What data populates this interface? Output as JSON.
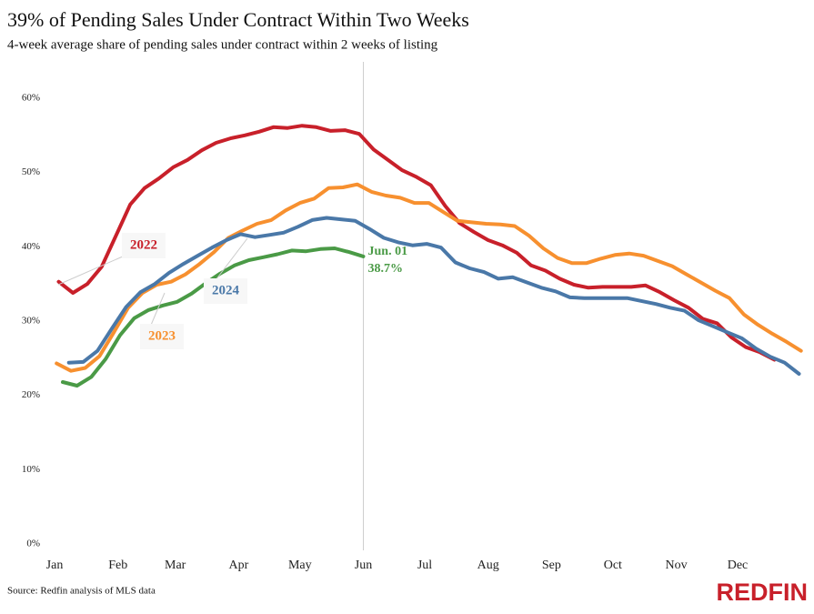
{
  "chart_data": {
    "type": "line",
    "title": "39% of Pending Sales Under Contract Within Two Weeks",
    "subtitle": "4-week average share of pending sales under contract within 2 weeks of listing",
    "source": "Source: Redfin analysis of MLS data",
    "brand": "REDFIN",
    "xlim": [
      1,
      366
    ],
    "ylim": [
      0,
      60
    ],
    "grid": false,
    "xticks": [
      {
        "value": 1,
        "label": "Jan"
      },
      {
        "value": 32,
        "label": "Feb"
      },
      {
        "value": 60,
        "label": "Mar"
      },
      {
        "value": 91,
        "label": "Apr"
      },
      {
        "value": 121,
        "label": "May"
      },
      {
        "value": 152,
        "label": "Jun"
      },
      {
        "value": 182,
        "label": "Jul"
      },
      {
        "value": 213,
        "label": "Aug"
      },
      {
        "value": 244,
        "label": "Sep"
      },
      {
        "value": 274,
        "label": "Oct"
      },
      {
        "value": 305,
        "label": "Nov"
      },
      {
        "value": 335,
        "label": "Dec"
      }
    ],
    "yticks": [
      {
        "value": 0,
        "label": "0%"
      },
      {
        "value": 10,
        "label": "10%"
      },
      {
        "value": 20,
        "label": "20%"
      },
      {
        "value": 30,
        "label": "30%"
      },
      {
        "value": 40,
        "label": "40%"
      },
      {
        "value": 50,
        "label": "50%"
      },
      {
        "value": 60,
        "label": "60%"
      }
    ],
    "series": [
      {
        "name": "2022",
        "color": "#c8202a",
        "x_start": 3,
        "x_step": 7,
        "values": [
          35.3,
          33.8,
          35,
          37.3,
          41.5,
          45.7,
          47.9,
          49.2,
          50.7,
          51.7,
          53,
          54,
          54.6,
          55,
          55.5,
          56.1,
          56,
          56.3,
          56.1,
          55.6,
          55.7,
          55.2,
          53.1,
          51.7,
          50.3,
          49.4,
          48.3,
          45.5,
          43.2,
          42,
          40.9,
          40.2,
          39.2,
          37.5,
          36.8,
          35.7,
          34.9,
          34.5,
          34.6,
          34.6,
          34.6,
          34.8,
          33.9,
          32.8,
          31.8,
          30.3,
          29.7,
          27.8,
          26.5,
          25.8,
          24.8
        ]
      },
      {
        "name": "2023",
        "color": "#f7902f",
        "x_start": 2,
        "x_step": 7,
        "values": [
          24.3,
          23.3,
          23.7,
          25.3,
          28.5,
          31.8,
          33.8,
          34.9,
          35.3,
          36.3,
          37.7,
          39.3,
          41.2,
          42.2,
          43.1,
          43.6,
          44.9,
          45.9,
          46.5,
          47.9,
          48,
          48.4,
          47.4,
          46.9,
          46.6,
          45.9,
          45.9,
          44.7,
          43.5,
          43.3,
          43.1,
          43,
          42.8,
          41.5,
          39.8,
          38.5,
          37.8,
          37.8,
          38.4,
          38.9,
          39.1,
          38.8,
          38.1,
          37.4,
          36.3,
          35.2,
          34.1,
          33.1,
          30.9,
          29.5,
          28.3,
          27.2,
          26
        ]
      },
      {
        "name": "2024",
        "color": "#4a78a8",
        "x_start": 8,
        "x_step": 7,
        "values": [
          24.4,
          24.5,
          26,
          29,
          31.9,
          33.9,
          35,
          36.5,
          37.7,
          38.8,
          39.9,
          40.9,
          41.7,
          41.3,
          41.6,
          41.9,
          42.7,
          43.6,
          43.9,
          43.7,
          43.5,
          42.4,
          41.2,
          40.6,
          40.2,
          40.4,
          39.9,
          37.9,
          37.1,
          36.6,
          35.7,
          35.9,
          35.2,
          34.5,
          34,
          33.2,
          33.1,
          33.1,
          33.1,
          33.1,
          32.7,
          32.3,
          31.8,
          31.4,
          30.1,
          29.3,
          28.5,
          27.7,
          26.3,
          25.2,
          24.4,
          22.9
        ]
      },
      {
        "color": "#4a9a46",
        "x_start": 5,
        "x_step": 7,
        "values": [
          21.8,
          21.3,
          22.5,
          24.9,
          28.1,
          30.4,
          31.5,
          32.1,
          32.6,
          33.7,
          35.1,
          36.4,
          37.5,
          38.2,
          38.6,
          39,
          39.5,
          39.4,
          39.7,
          39.8,
          39.3,
          38.7
        ]
      }
    ],
    "callout": {
      "x": 152,
      "label": "Jun. 01",
      "value": 38.7,
      "value_label": "38.7%"
    }
  }
}
